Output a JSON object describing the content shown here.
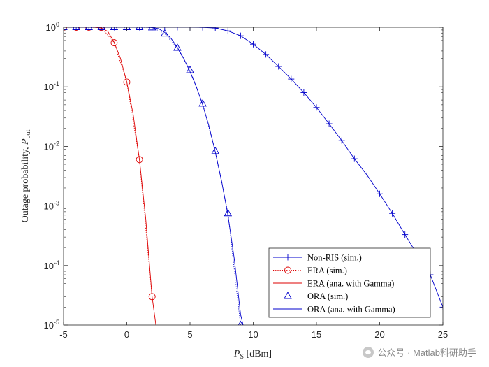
{
  "chart_data": {
    "type": "line",
    "title": "",
    "xlabel": "P",
    "xlabel_sub": "S",
    "xlabel_unit": " [dBm]",
    "ylabel": "Outage probability, ",
    "ylabel_sym": "P",
    "ylabel_sub": "out",
    "xlim": [
      -5,
      25
    ],
    "ylim": [
      1e-05,
      1
    ],
    "yscale": "log",
    "grid": false,
    "legend_position": "bottom-right",
    "x_ticks": [
      -5,
      0,
      5,
      10,
      15,
      20,
      25
    ],
    "x_tick_labels": [
      "-5",
      "0",
      "5",
      "10",
      "15",
      "20",
      "25"
    ],
    "y_ticks": [
      -5,
      -4,
      -3,
      -2,
      -1,
      0
    ],
    "y_tick_base": "10",
    "y_tick_exps": [
      "-5",
      "-4",
      "-3",
      "-2",
      "-1",
      "0"
    ],
    "series": [
      {
        "name": "Non-RIS (sim.)",
        "color": "#0000cc",
        "line": "solid",
        "marker": "plus",
        "x": [
          -5,
          -4,
          -3,
          -2,
          -1,
          0,
          1,
          2,
          3,
          4,
          5,
          6,
          7,
          8,
          9,
          10,
          11,
          12,
          13,
          14,
          15,
          16,
          17,
          18,
          19,
          20,
          21,
          22,
          23,
          24,
          25
        ],
        "y": [
          1,
          1,
          1,
          1,
          1,
          1,
          1,
          1,
          1,
          1,
          0.999,
          0.995,
          0.97,
          0.87,
          0.72,
          0.52,
          0.35,
          0.22,
          0.135,
          0.08,
          0.045,
          0.024,
          0.0125,
          0.0062,
          0.0033,
          0.0016,
          0.00075,
          0.00033,
          0.00015,
          7e-05,
          2e-05
        ]
      },
      {
        "name": "ERA (sim.)",
        "color": "#dd0000",
        "line": "dotted",
        "marker": "circle",
        "x": [
          -5,
          -4,
          -3,
          -2,
          -1,
          0,
          1,
          2
        ],
        "y": [
          1,
          1,
          1,
          0.99,
          0.55,
          0.12,
          0.006,
          3e-05
        ]
      },
      {
        "name": "ERA (ana. with Gamma)",
        "color": "#dd0000",
        "line": "solid",
        "marker": "none",
        "x": [
          -5,
          -4,
          -3,
          -2.5,
          -2,
          -1.5,
          -1,
          -0.5,
          0,
          0.5,
          1,
          1.5,
          2,
          2.3
        ],
        "y": [
          1,
          1,
          1,
          0.995,
          0.97,
          0.85,
          0.56,
          0.3,
          0.12,
          0.035,
          0.006,
          0.0006,
          3e-05,
          1e-05
        ]
      },
      {
        "name": "ORA (sim.)",
        "color": "#0000cc",
        "line": "dotted",
        "marker": "triangle",
        "x": [
          -5,
          -4,
          -3,
          -2,
          -1,
          0,
          1,
          2,
          3,
          4,
          5,
          6,
          7,
          8,
          9
        ],
        "y": [
          1,
          1,
          1,
          1,
          1,
          1,
          1,
          0.99,
          0.78,
          0.45,
          0.19,
          0.052,
          0.0083,
          0.00075,
          1e-05
        ]
      },
      {
        "name": "ORA (ana. with Gamma)",
        "color": "#0000cc",
        "line": "solid",
        "marker": "none",
        "x": [
          -5,
          -4,
          -3,
          -2,
          -1,
          0,
          1,
          1.5,
          2,
          2.5,
          3,
          3.5,
          4,
          4.5,
          5,
          5.5,
          6,
          6.5,
          7,
          7.5,
          8,
          8.5,
          9,
          9.2
        ],
        "y": [
          1,
          1,
          1,
          1,
          1,
          1,
          1,
          0.998,
          0.99,
          0.95,
          0.82,
          0.65,
          0.46,
          0.3,
          0.18,
          0.1,
          0.05,
          0.022,
          0.008,
          0.0026,
          0.0007,
          0.00013,
          1.5e-05,
          1e-05
        ]
      }
    ]
  },
  "watermark": {
    "text": "公众号 · Matlab科研助手"
  }
}
